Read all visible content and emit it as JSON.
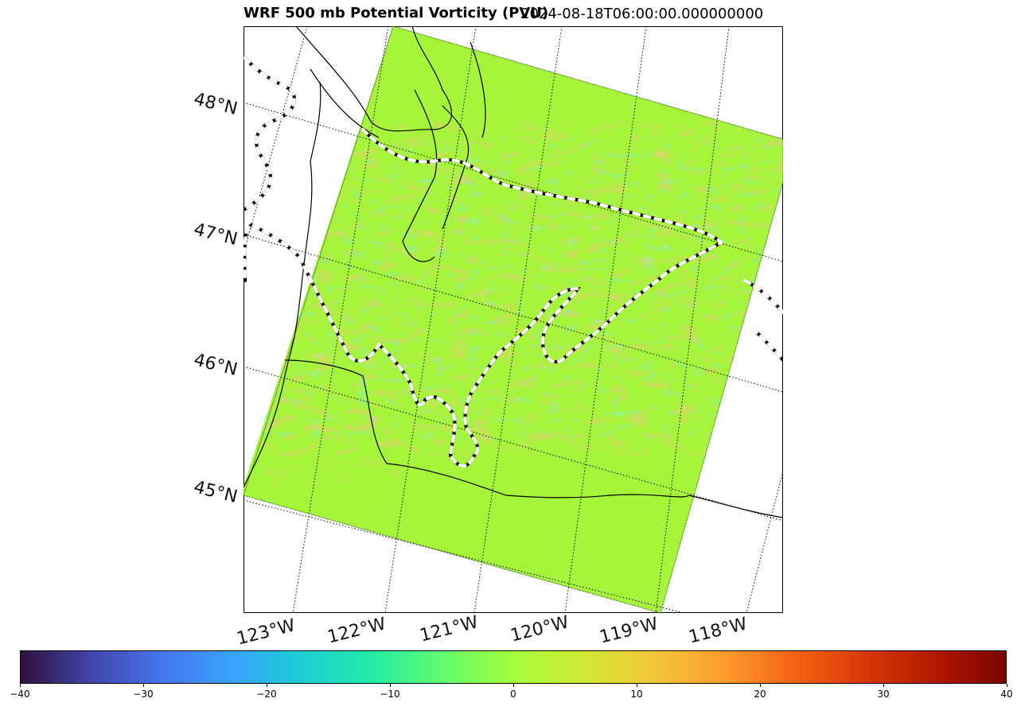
{
  "title": {
    "main": "WRF 500 mb Potential Vorticity (PVU)",
    "time": "2024-08-18T06:00:00.000000000"
  },
  "map": {
    "lat_labels": [
      "48°N",
      "47°N",
      "46°N",
      "45°N"
    ],
    "lon_labels": [
      "123°W",
      "122°W",
      "121°W",
      "120°W",
      "119°W",
      "118°W"
    ],
    "domain_fill_color": "#a6f53a",
    "coast_color": "#000000"
  },
  "colorbar": {
    "min": -40,
    "max": 40,
    "ticks": [
      "−40",
      "−30",
      "−20",
      "−10",
      "0",
      "10",
      "20",
      "30",
      "40"
    ],
    "colormap": "turbo"
  }
}
